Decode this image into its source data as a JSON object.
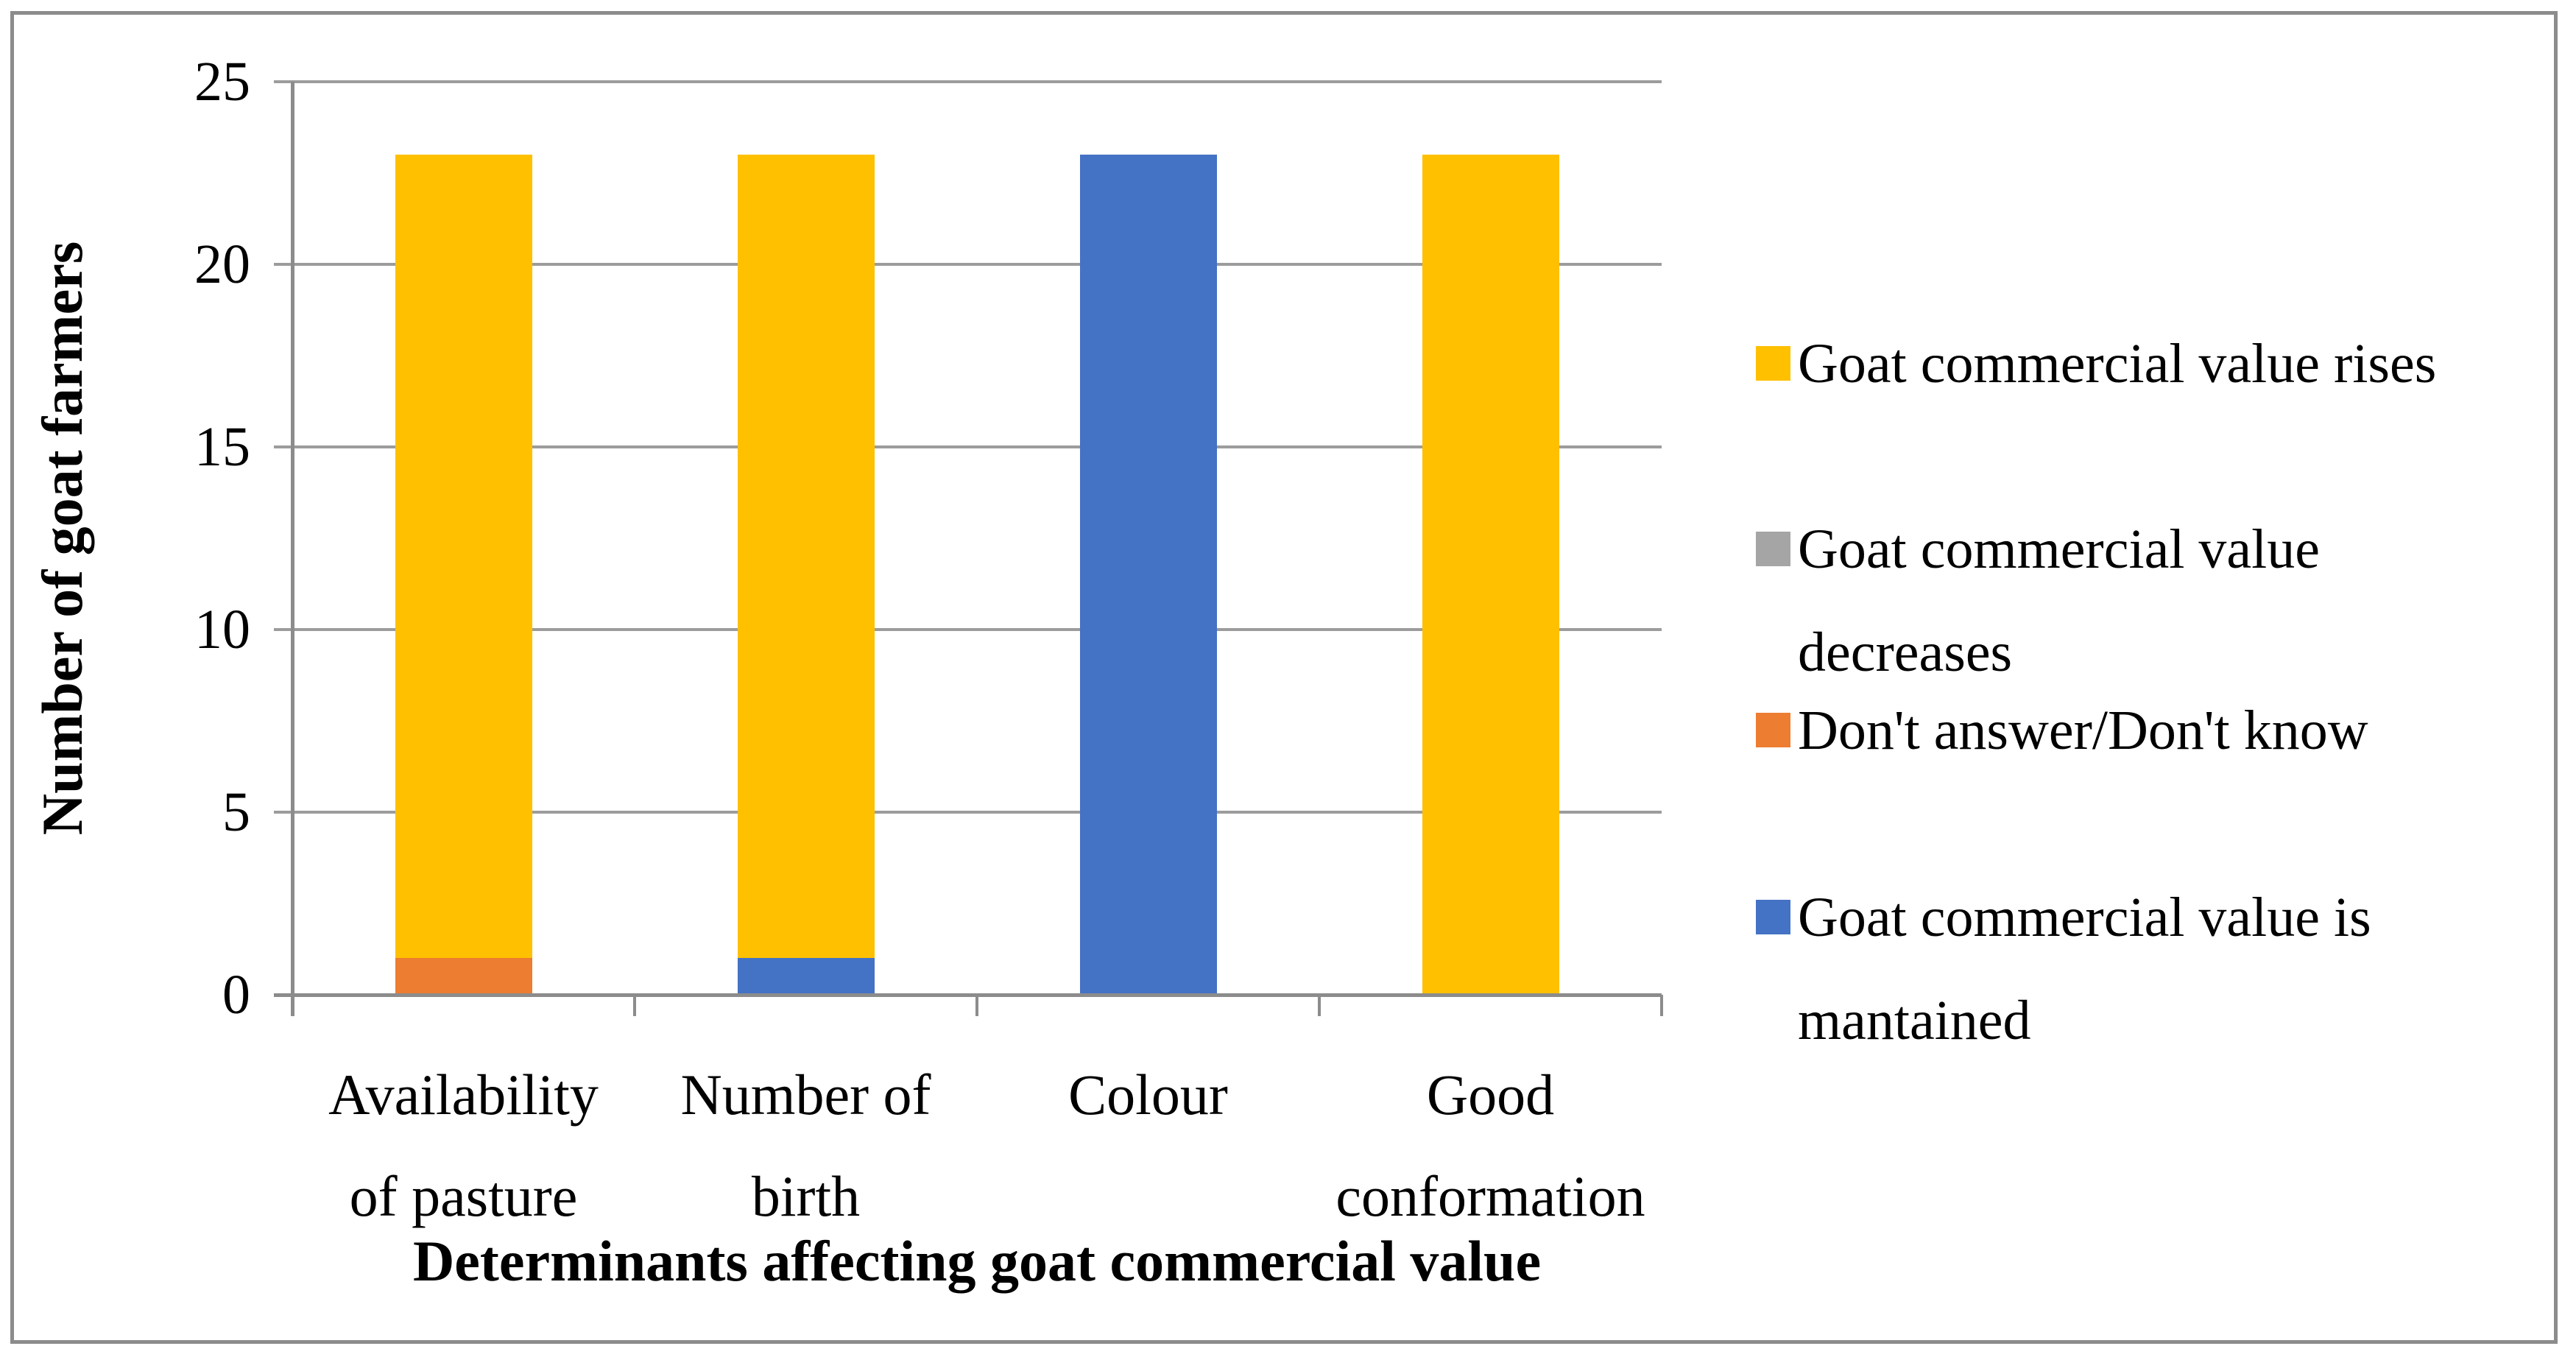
{
  "figure": {
    "y_axis_title": "Number of goat farmers",
    "x_axis_title": "Determinants affecting goat commercial value"
  },
  "chart_data": {
    "type": "bar",
    "stacked": true,
    "title": "",
    "xlabel": "Determinants affecting goat commercial value",
    "ylabel": "Number of goat farmers",
    "ylim": [
      0,
      25
    ],
    "yticks": [
      0,
      5,
      10,
      15,
      20,
      25
    ],
    "grid": "horizontal",
    "legend_position": "right",
    "categories": [
      "Availability of pasture",
      "Number of birth",
      "Colour",
      "Good conformation"
    ],
    "category_display": [
      "Availability\nof pasture",
      "Number of\nbirth",
      "Colour",
      "Good\nconformation"
    ],
    "series": [
      {
        "name": "Goat commercial value rises",
        "display": "Goat commercial value rises",
        "color": "#FFC000",
        "values": [
          22,
          22,
          0,
          23
        ]
      },
      {
        "name": "Goat commercial value decreases",
        "display": "Goat commercial value\ndecreases",
        "color": "#A5A5A5",
        "values": [
          0,
          0,
          0,
          0
        ]
      },
      {
        "name": "Don't answer/Don't know",
        "display": "Don't answer/Don't know",
        "color": "#ED7D31",
        "values": [
          1,
          0,
          0,
          0
        ]
      },
      {
        "name": "Goat commercial value is mantained",
        "display": "Goat commercial value is\nmantained",
        "color": "#4472C4",
        "values": [
          0,
          1,
          23,
          0
        ]
      }
    ],
    "stack_order_bottom_to_top": [
      "Goat commercial value is mantained",
      "Don't answer/Don't know",
      "Goat commercial value decreases",
      "Goat commercial value rises"
    ],
    "bar_totals": [
      23,
      23,
      23,
      23
    ],
    "colors": {
      "axis": "#8C8C8C",
      "gridline": "#9C9C9C",
      "text": "#000000",
      "background": "#FFFFFF",
      "border": "#8C8C8C"
    }
  }
}
